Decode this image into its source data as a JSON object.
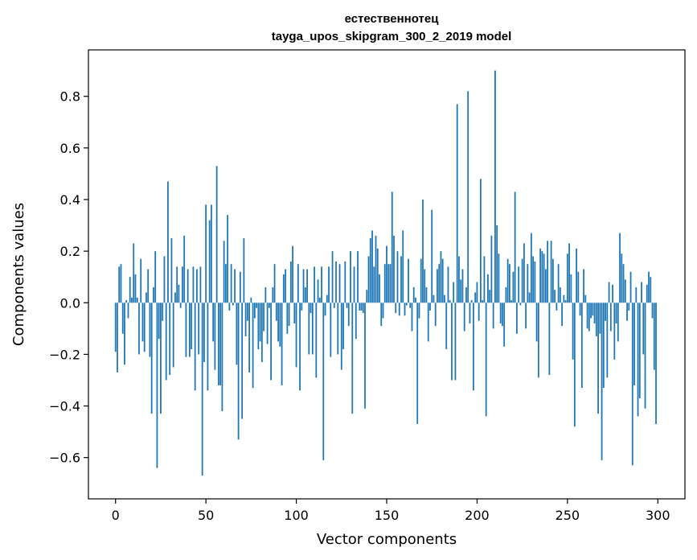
{
  "chart_data": {
    "type": "bar",
    "title_line1": "естественнотец",
    "title_line2": "tayga_upos_skipgram_300_2_2019 model",
    "xlabel": "Vector components",
    "ylabel": "Components values",
    "xlim": [
      -15,
      315
    ],
    "ylim": [
      -0.76,
      0.98
    ],
    "xticks": [
      0,
      50,
      100,
      150,
      200,
      250,
      300
    ],
    "xtick_labels": [
      "0",
      "50",
      "100",
      "150",
      "200",
      "250",
      "300"
    ],
    "yticks": [
      -0.6,
      -0.4,
      -0.2,
      0.0,
      0.2,
      0.4,
      0.6,
      0.8
    ],
    "ytick_labels": [
      "−0.6",
      "−0.4",
      "−0.2",
      "0.0",
      "0.2",
      "0.4",
      "0.6",
      "0.8"
    ],
    "color": "#1f77b4",
    "values": [
      -0.19,
      -0.27,
      0.14,
      0.15,
      -0.12,
      -0.24,
      0.01,
      -0.06,
      0.1,
      0.02,
      0.23,
      0.11,
      0.02,
      -0.2,
      0.17,
      -0.15,
      -0.19,
      0.04,
      0.13,
      -0.21,
      -0.43,
      0.06,
      0.2,
      -0.64,
      -0.14,
      -0.43,
      -0.07,
      0.18,
      -0.3,
      0.47,
      -0.28,
      0.25,
      -0.25,
      0.04,
      0.14,
      0.07,
      -0.02,
      0.14,
      0.26,
      -0.21,
      0.13,
      -0.21,
      -0.18,
      0.14,
      -0.34,
      0.13,
      -0.2,
      0.14,
      -0.67,
      -0.23,
      0.38,
      -0.34,
      0.32,
      0.38,
      -0.15,
      -0.26,
      0.53,
      -0.32,
      -0.32,
      -0.42,
      0.24,
      0.15,
      0.34,
      -0.03,
      0.15,
      -0.01,
      0.13,
      -0.24,
      -0.53,
      0.12,
      -0.45,
      0.25,
      -0.13,
      -0.07,
      -0.27,
      0.02,
      -0.33,
      -0.06,
      -0.02,
      -0.18,
      -0.15,
      -0.23,
      -0.11,
      0.06,
      -0.16,
      -0.02,
      -0.3,
      0.06,
      0.15,
      -0.07,
      -0.15,
      -0.17,
      -0.32,
      0.11,
      0.13,
      -0.12,
      -0.09,
      0.16,
      0.22,
      -0.08,
      -0.25,
      0.15,
      -0.34,
      -0.03,
      0.13,
      0.06,
      0.13,
      -0.2,
      -0.04,
      -0.2,
      0.14,
      -0.29,
      0.09,
      0.02,
      0.14,
      -0.61,
      -0.05,
      0.03,
      0.14,
      -0.21,
      0.2,
      -0.02,
      0.16,
      -0.2,
      0.15,
      -0.26,
      -0.18,
      0.16,
      -0.02,
      -0.09,
      0.2,
      -0.43,
      0.14,
      -0.14,
      0.2,
      -0.03,
      -0.03,
      -0.04,
      -0.41,
      0.05,
      0.18,
      0.25,
      0.28,
      0.14,
      0.26,
      0.21,
      0.11,
      -0.09,
      -0.06,
      0.15,
      0.22,
      0.15,
      0.15,
      0.43,
      0.26,
      -0.04,
      0.2,
      -0.05,
      0.18,
      0.28,
      -0.05,
      -0.01,
      0.17,
      -0.02,
      -0.11,
      0.06,
      0.02,
      -0.47,
      -0.06,
      0.17,
      0.4,
      0.13,
      0.06,
      -0.15,
      -0.03,
      0.36,
      0.03,
      -0.09,
      0.13,
      0.15,
      0.2,
      0.17,
      0.03,
      -0.18,
      0.14,
      0.01,
      -0.3,
      0.08,
      -0.3,
      0.77,
      0.18,
      0.09,
      0.13,
      -0.11,
      0.06,
      0.82,
      -0.08,
      0.01,
      -0.34,
      0.04,
      0.08,
      -0.07,
      0.48,
      0.01,
      0.18,
      -0.44,
      0.11,
      0.05,
      0.26,
      -0.1,
      0.9,
      0.3,
      0.19,
      -0.08,
      -0.09,
      -0.17,
      0.06,
      0.17,
      0.15,
      0.01,
      0.12,
      0.43,
      -0.12,
      0.14,
      -0.01,
      0.17,
      0.23,
      -0.1,
      0.15,
      0.04,
      0.27,
      0.18,
      0.16,
      -0.15,
      -0.29,
      0.21,
      0.2,
      0.19,
      0.13,
      0.24,
      -0.28,
      0.24,
      0.17,
      0.05,
      -0.03,
      0.15,
      0.06,
      -0.09,
      0.03,
      0.01,
      0.19,
      0.23,
      0.11,
      -0.22,
      -0.48,
      0.21,
      0.12,
      -0.05,
      -0.33,
      0.13,
      0.03,
      -0.1,
      -0.11,
      -0.06,
      -0.05,
      -0.08,
      -0.13,
      -0.43,
      -0.12,
      -0.61,
      -0.33,
      -0.07,
      -0.29,
      0.08,
      -0.11,
      0.07,
      -0.22,
      -0.08,
      -0.15,
      0.27,
      0.19,
      0.15,
      0.09,
      -0.07,
      -0.03,
      0.12,
      -0.63,
      -0.32,
      0.06,
      -0.44,
      -0.37,
      0.08,
      -0.2,
      -0.41,
      0.07,
      0.12,
      0.1,
      -0.06,
      -0.26,
      -0.47
    ]
  }
}
